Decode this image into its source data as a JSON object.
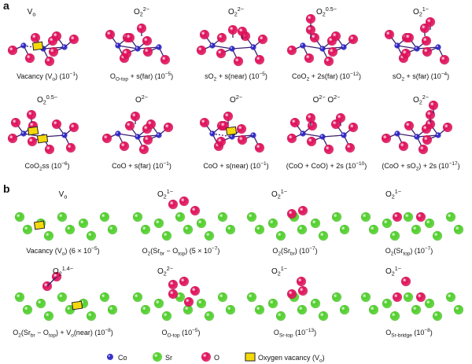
{
  "panels": [
    {
      "letter": "a",
      "rows": [
        [
          {
            "species": [
              {
                "t": "V"
              },
              {
                "t": "o",
                "sub": 1
              }
            ],
            "label": [
              {
                "t": "Vacancy (V"
              },
              {
                "t": "o",
                "sub": 1
              },
              {
                "t": ") (10"
              },
              {
                "t": "−1",
                "sup": 1
              },
              {
                "t": ")"
              }
            ]
          },
          {
            "species": [
              {
                "t": "O"
              },
              {
                "t": "2",
                "sub": 1
              },
              {
                "t": "2−",
                "sup": 1
              }
            ],
            "label": [
              {
                "t": "O"
              },
              {
                "t": "O-top",
                "sub": 1
              },
              {
                "t": " + s(far) (10"
              },
              {
                "t": "−5",
                "sup": 1
              },
              {
                "t": ")"
              }
            ]
          },
          {
            "species": [
              {
                "t": "O"
              },
              {
                "t": "2",
                "sub": 1
              },
              {
                "t": "2−",
                "sup": 1
              }
            ],
            "label": [
              {
                "t": "sO"
              },
              {
                "t": "2",
                "sub": 1
              },
              {
                "t": " + s(near) (10"
              },
              {
                "t": "−5",
                "sup": 1
              },
              {
                "t": ")"
              }
            ]
          },
          {
            "species": [
              {
                "t": "O"
              },
              {
                "t": "2",
                "sub": 1
              },
              {
                "t": "0.5−",
                "sup": 1
              }
            ],
            "label": [
              {
                "t": "CoO"
              },
              {
                "t": "2",
                "sub": 1
              },
              {
                "t": " + 2s(far) (10"
              },
              {
                "t": "−12",
                "sup": 1
              },
              {
                "t": ")"
              }
            ]
          },
          {
            "species": [
              {
                "t": "O"
              },
              {
                "t": "2",
                "sub": 1
              },
              {
                "t": "1−",
                "sup": 1
              }
            ],
            "label": [
              {
                "t": "sO"
              },
              {
                "t": "2",
                "sub": 1
              },
              {
                "t": " + s(far) (10"
              },
              {
                "t": "−4",
                "sup": 1
              },
              {
                "t": ")"
              }
            ]
          }
        ],
        [
          {
            "species": [
              {
                "t": "O"
              },
              {
                "t": "2",
                "sub": 1
              },
              {
                "t": "0.5−",
                "sup": 1
              }
            ],
            "label": [
              {
                "t": "CoO"
              },
              {
                "t": "2",
                "sub": 1
              },
              {
                "t": "ss (10"
              },
              {
                "t": "−6",
                "sup": 1
              },
              {
                "t": ")"
              }
            ]
          },
          {
            "species": [
              {
                "t": "O"
              },
              {
                "t": "2−",
                "sup": 1
              }
            ],
            "label": [
              {
                "t": "CoO + s(far) (10"
              },
              {
                "t": "−1",
                "sup": 1
              },
              {
                "t": ")"
              }
            ]
          },
          {
            "species": [
              {
                "t": "O"
              },
              {
                "t": "2−",
                "sup": 1
              }
            ],
            "label": [
              {
                "t": "CoO + s(near) (10"
              },
              {
                "t": "−1",
                "sup": 1
              },
              {
                "t": ")"
              }
            ]
          },
          {
            "species": [
              {
                "t": "O"
              },
              {
                "t": "2−",
                "sup": 1
              },
              {
                "t": "      O"
              },
              {
                "t": "2−",
                "sup": 1
              }
            ],
            "label": [
              {
                "t": "(CoO + CoO) + 2s (10"
              },
              {
                "t": "−10",
                "sup": 1
              },
              {
                "t": ")"
              }
            ]
          },
          {
            "species": [
              {
                "t": "O"
              },
              {
                "t": "2",
                "sub": 1
              },
              {
                "t": "2−",
                "sup": 1
              }
            ],
            "label": [
              {
                "t": "(CoO + sO"
              },
              {
                "t": "2",
                "sub": 1
              },
              {
                "t": ") + 2s (10"
              },
              {
                "t": "−17",
                "sup": 1
              },
              {
                "t": ")"
              }
            ]
          }
        ]
      ]
    },
    {
      "letter": "b",
      "rows": [
        [
          {
            "species": [
              {
                "t": "V"
              },
              {
                "t": "o",
                "sub": 1
              }
            ],
            "label": [
              {
                "t": "Vacancy (V"
              },
              {
                "t": "o",
                "sub": 1
              },
              {
                "t": ") (6 × 10"
              },
              {
                "t": "−5",
                "sup": 1
              },
              {
                "t": ")"
              }
            ]
          },
          {
            "species": [
              {
                "t": "O"
              },
              {
                "t": "2",
                "sub": 1
              },
              {
                "t": "1−",
                "sup": 1
              }
            ],
            "label": [
              {
                "t": "O"
              },
              {
                "t": "2",
                "sub": 1
              },
              {
                "t": "(Sr"
              },
              {
                "t": "br",
                "sub": 1
              },
              {
                "t": " − O"
              },
              {
                "t": "top",
                "sub": 1
              },
              {
                "t": ") (5 × 10"
              },
              {
                "t": "−7",
                "sup": 1
              },
              {
                "t": ")"
              }
            ]
          },
          {
            "species": [
              {
                "t": "O"
              },
              {
                "t": "2",
                "sub": 1
              },
              {
                "t": "1−",
                "sup": 1
              }
            ],
            "label": [
              {
                "t": "O"
              },
              {
                "t": "2",
                "sub": 1
              },
              {
                "t": "(Sr"
              },
              {
                "t": "br",
                "sub": 1
              },
              {
                "t": ") (10"
              },
              {
                "t": "−7",
                "sup": 1
              },
              {
                "t": ")"
              }
            ]
          },
          {
            "species": [
              {
                "t": "O"
              },
              {
                "t": "2",
                "sub": 1
              },
              {
                "t": "1−",
                "sup": 1
              }
            ],
            "label": [
              {
                "t": "O"
              },
              {
                "t": "2",
                "sub": 1
              },
              {
                "t": "(Sr"
              },
              {
                "t": "top",
                "sub": 1
              },
              {
                "t": ") (10"
              },
              {
                "t": "−7",
                "sup": 1
              },
              {
                "t": ")"
              }
            ]
          }
        ],
        [
          {
            "species": [
              {
                "t": "O"
              },
              {
                "t": "2",
                "sub": 1
              },
              {
                "t": "1.4−",
                "sup": 1
              }
            ],
            "label": [
              {
                "t": "O"
              },
              {
                "t": "2",
                "sub": 1
              },
              {
                "t": "(Sr"
              },
              {
                "t": "br",
                "sub": 1
              },
              {
                "t": " − O"
              },
              {
                "t": "top",
                "sub": 1
              },
              {
                "t": ") + V"
              },
              {
                "t": "o",
                "sub": 1
              },
              {
                "t": "(near) (10"
              },
              {
                "t": "−8",
                "sup": 1
              },
              {
                "t": ")"
              }
            ]
          },
          {
            "species": [
              {
                "t": "O"
              },
              {
                "t": "2",
                "sub": 1
              },
              {
                "t": "2−",
                "sup": 1
              }
            ],
            "label": [
              {
                "t": "O"
              },
              {
                "t": "O-top",
                "sub": 1
              },
              {
                "t": " (10"
              },
              {
                "t": "−5",
                "sup": 1
              },
              {
                "t": ")"
              }
            ]
          },
          {
            "species": [
              {
                "t": "O"
              },
              {
                "t": "2",
                "sub": 1
              },
              {
                "t": "1−",
                "sup": 1
              }
            ],
            "label": [
              {
                "t": "O"
              },
              {
                "t": "Sr-top",
                "sub": 1
              },
              {
                "t": " (10"
              },
              {
                "t": "−13",
                "sup": 1
              },
              {
                "t": ")"
              }
            ]
          },
          {
            "species": [
              {
                "t": "O"
              },
              {
                "t": "2",
                "sub": 1
              },
              {
                "t": "1−",
                "sup": 1
              }
            ],
            "label": [
              {
                "t": "O"
              },
              {
                "t": "Sr-bridge",
                "sub": 1
              },
              {
                "t": " (10"
              },
              {
                "t": "−8",
                "sup": 1
              },
              {
                "t": ")"
              }
            ]
          }
        ]
      ]
    }
  ],
  "legend": [
    {
      "key": "co",
      "label": [
        {
          "t": "Co"
        }
      ]
    },
    {
      "key": "sr",
      "label": [
        {
          "t": "Sr"
        }
      ]
    },
    {
      "key": "o",
      "label": [
        {
          "t": "O"
        }
      ]
    },
    {
      "key": "vac",
      "label": [
        {
          "t": "Oxygen vacancy (V"
        },
        {
          "t": "o",
          "sub": 1
        },
        {
          "t": ")"
        }
      ]
    }
  ],
  "colors": {
    "co": "#2b22c8",
    "sr": "#4fcf2a",
    "o": "#e0105a",
    "vacancy": "#f5d90a",
    "bond": "#3a1f6e"
  }
}
